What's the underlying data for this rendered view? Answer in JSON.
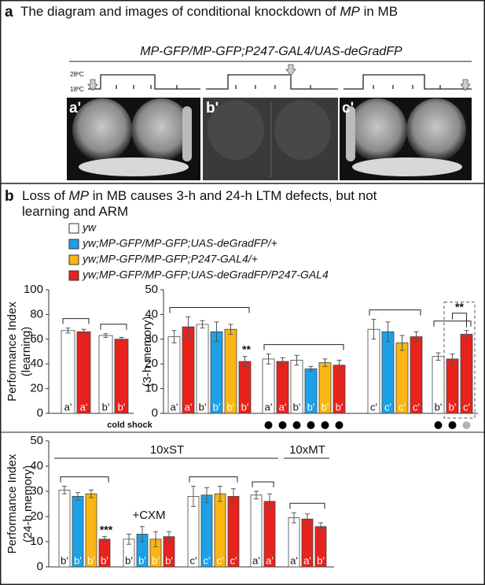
{
  "panel_a": {
    "letter": "a",
    "title_parts": [
      "The diagram and images of conditional knockdown of ",
      "MP",
      " in MB"
    ],
    "genotype": "MP-GFP/MP-GFP;P247-GAL4/UAS-deGradFP",
    "temp_high": "28ºC",
    "temp_low": "18ºC",
    "images": [
      "a'",
      "b'",
      "c'"
    ]
  },
  "panel_b": {
    "letter": "b",
    "title_lines": [
      [
        "Loss of ",
        "MP",
        " in MB causes 3-h and 24-h LTM defects, but not"
      ],
      [
        "learning and ARM"
      ]
    ],
    "legend": [
      {
        "name": "yw",
        "color": "#ffffff"
      },
      {
        "name": "yw;MP-GFP/MP-GFP;UAS-deGradFP/+",
        "color": "#1ea0e6"
      },
      {
        "name": "yw;MP-GFP/MP-GFP;P247-GAL4/+",
        "color": "#fbb614"
      },
      {
        "name": "yw;MP-GFP/MP-GFP;UAS-deGradFP/P247-GAL4",
        "color": "#e8221c"
      }
    ],
    "cold_shock": "cold shock"
  },
  "chart_data": [
    {
      "type": "bar",
      "ylabel": [
        "Performance Index",
        "(learning)"
      ],
      "ylim": [
        0,
        100
      ],
      "yticks": [
        0,
        20,
        40,
        60,
        80,
        100
      ],
      "sections": [
        {
          "groups": [
            {
              "bracket": true,
              "bars": [
                {
                  "label": "a'",
                  "value": 67,
                  "error": 2,
                  "color": "#ffffff"
                },
                {
                  "label": "a'",
                  "value": 66,
                  "error": 2,
                  "color": "#e8221c"
                }
              ]
            },
            {
              "bracket": true,
              "bars": [
                {
                  "label": "b'",
                  "value": 63,
                  "error": 1.5,
                  "color": "#ffffff"
                },
                {
                  "label": "b'",
                  "value": 60,
                  "error": 1.5,
                  "color": "#e8221c"
                }
              ]
            }
          ]
        }
      ]
    },
    {
      "type": "bar",
      "ylabel": [
        "(3-h memory)"
      ],
      "ylim": [
        0,
        50
      ],
      "yticks": [
        0,
        10,
        20,
        30,
        40,
        50
      ],
      "sections": [
        {
          "groups": [
            {
              "bracket": true,
              "bars": [
                {
                  "label": "a'",
                  "value": 31,
                  "error": 2.5,
                  "color": "#ffffff"
                },
                {
                  "label": "a'",
                  "value": 35,
                  "error": 4,
                  "color": "#e8221c"
                },
                {
                  "label": "b'",
                  "value": 36,
                  "error": 1.5,
                  "color": "#ffffff"
                },
                {
                  "label": "b'",
                  "value": 33,
                  "error": 4,
                  "color": "#1ea0e6"
                },
                {
                  "label": "b'",
                  "value": 34,
                  "error": 2,
                  "color": "#fbb614"
                },
                {
                  "label": "b'",
                  "value": 21,
                  "error": 2,
                  "color": "#e8221c",
                  "note": "**"
                }
              ]
            },
            {
              "bracket": true,
              "bars": [
                {
                  "label": "a'",
                  "value": 22,
                  "error": 2,
                  "color": "#ffffff",
                  "dot": "#000000"
                },
                {
                  "label": "a'",
                  "value": 21,
                  "error": 1.5,
                  "color": "#e8221c",
                  "dot": "#000000"
                },
                {
                  "label": "b'",
                  "value": 21.5,
                  "error": 2,
                  "color": "#ffffff",
                  "dot": "#000000"
                },
                {
                  "label": "b'",
                  "value": 18,
                  "error": 1,
                  "color": "#1ea0e6",
                  "dot": "#000000"
                },
                {
                  "label": "b'",
                  "value": 20.5,
                  "error": 1.5,
                  "color": "#fbb614",
                  "dot": "#000000"
                },
                {
                  "label": "b'",
                  "value": 19.5,
                  "error": 2,
                  "color": "#e8221c",
                  "dot": "#000000"
                }
              ]
            },
            {
              "bracket": true,
              "bars": [
                {
                  "label": "c'",
                  "value": 34,
                  "error": 4,
                  "color": "#ffffff"
                },
                {
                  "label": "c'",
                  "value": 33,
                  "error": 4,
                  "color": "#1ea0e6"
                },
                {
                  "label": "c'",
                  "value": 28.5,
                  "error": 3,
                  "color": "#fbb614"
                },
                {
                  "label": "c'",
                  "value": 31,
                  "error": 2,
                  "color": "#e8221c"
                }
              ]
            },
            {
              "bracket": true,
              "box": true,
              "note": "**",
              "bars": [
                {
                  "label": "b'",
                  "value": 23,
                  "error": 1.5,
                  "color": "#ffffff",
                  "dot": "#000000"
                },
                {
                  "label": "b'",
                  "value": 22,
                  "error": 2,
                  "color": "#e8221c",
                  "dot": "#000000"
                },
                {
                  "label": "c'",
                  "value": 32,
                  "error": 1.5,
                  "color": "#e8221c",
                  "dot": "#b4b4b4"
                }
              ]
            }
          ]
        }
      ]
    },
    {
      "type": "bar",
      "ylabel": [
        "Performance Index",
        "(24-h memory)"
      ],
      "ylim": [
        0,
        50
      ],
      "yticks": [
        0,
        10,
        20,
        30,
        40,
        50
      ],
      "sections": [
        {
          "label": "10xST",
          "groups": [
            {
              "bracket": true,
              "bars": [
                {
                  "label": "b'",
                  "value": 30.5,
                  "error": 1.5,
                  "color": "#ffffff"
                },
                {
                  "label": "b'",
                  "value": 28,
                  "error": 1.5,
                  "color": "#1ea0e6"
                },
                {
                  "label": "b'",
                  "value": 29,
                  "error": 1.5,
                  "color": "#fbb614"
                },
                {
                  "label": "b'",
                  "value": 11,
                  "error": 1,
                  "color": "#e8221c",
                  "note": "***"
                }
              ]
            },
            {
              "label": "+CXM",
              "bars": [
                {
                  "label": "b'",
                  "value": 11,
                  "error": 2,
                  "color": "#ffffff"
                },
                {
                  "label": "b'",
                  "value": 13,
                  "error": 3,
                  "color": "#1ea0e6"
                },
                {
                  "label": "b'",
                  "value": 11,
                  "error": 3,
                  "color": "#fbb614"
                },
                {
                  "label": "b'",
                  "value": 12,
                  "error": 2,
                  "color": "#e8221c"
                }
              ]
            },
            {
              "bracket": true,
              "bars": [
                {
                  "label": "c'",
                  "value": 28,
                  "error": 4,
                  "color": "#ffffff"
                },
                {
                  "label": "c'",
                  "value": 28.5,
                  "error": 3,
                  "color": "#1ea0e6"
                },
                {
                  "label": "c'",
                  "value": 29,
                  "error": 3,
                  "color": "#fbb614"
                },
                {
                  "label": "c'",
                  "value": 28,
                  "error": 3,
                  "color": "#e8221c"
                }
              ]
            },
            {
              "bracket": true,
              "bars": [
                {
                  "label": "a'",
                  "value": 28.5,
                  "error": 1.5,
                  "color": "#ffffff"
                },
                {
                  "label": "a'",
                  "value": 26,
                  "error": 3,
                  "color": "#e8221c"
                }
              ]
            }
          ]
        },
        {
          "label": "10xMT",
          "groups": [
            {
              "bracket": true,
              "bars": [
                {
                  "label": "a'",
                  "value": 19.5,
                  "error": 2,
                  "color": "#ffffff"
                },
                {
                  "label": "a'",
                  "value": 19,
                  "error": 2,
                  "color": "#e8221c"
                },
                {
                  "label": "b'",
                  "value": 16,
                  "error": 1.5,
                  "color": "#e8221c"
                }
              ]
            }
          ]
        }
      ]
    }
  ]
}
